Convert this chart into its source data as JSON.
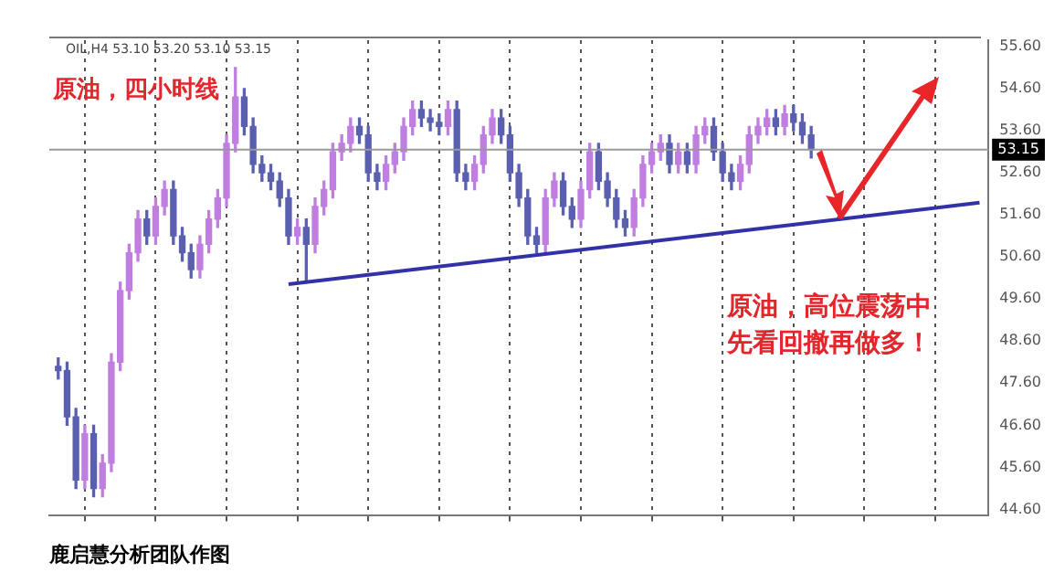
{
  "chart_data": {
    "type": "candlestick",
    "title": "原油，四小时线",
    "annotations": [
      "OIL,H4 53.10 53.20 53.10 53.15",
      "原油，高位震荡中先看回撤再做多！",
      "鹿启慧分析团队作图"
    ],
    "categories": [
      null,
      null,
      null,
      null,
      null,
      null,
      null,
      null,
      null,
      null,
      null,
      null,
      null,
      null,
      null,
      null,
      null,
      null,
      null,
      null,
      null,
      null,
      null,
      null,
      null,
      null,
      null,
      null,
      null,
      null,
      null,
      null,
      null,
      null,
      null,
      null,
      null,
      null,
      null,
      null,
      null,
      null,
      null,
      null,
      null,
      null,
      null,
      null,
      null,
      null,
      null,
      null,
      null,
      null,
      null,
      null,
      null,
      null,
      null,
      null,
      null,
      null,
      null,
      null,
      null,
      null,
      null,
      null,
      null,
      null,
      null,
      null,
      null,
      null,
      null,
      null,
      null,
      null,
      null,
      null,
      null,
      null,
      null,
      null,
      null,
      null,
      null,
      null,
      null,
      null,
      null,
      null,
      null,
      null,
      null,
      null,
      null,
      null,
      null,
      null,
      null,
      null,
      null,
      null,
      null
    ],
    "colors": [
      "#5b5fb0",
      "#5b5fb0",
      "#5b5fb0",
      "#c07ee0",
      "#5b5fb0",
      "#c07ee0",
      "#c07ee0",
      "#c07ee0",
      "#c07ee0",
      "#c07ee0",
      "#5b5fb0",
      "#c07ee0",
      "#c07ee0",
      "#5b5fb0",
      "#5b5fb0",
      "#5b5fb0",
      "#c07ee0",
      "#c07ee0",
      "#c07ee0",
      "#c07ee0",
      "#c07ee0",
      "#5b5fb0",
      "#5b5fb0",
      "#5b5fb0",
      "#5b5fb0",
      "#5b5fb0",
      "#5b5fb0",
      "#c07ee0",
      "#5b5fb0",
      "#c07ee0",
      "#c07ee0",
      "#c07ee0",
      "#c07ee0",
      "#c07ee0",
      "#5b5fb0",
      "#5b5fb0",
      "#5b5fb0",
      "#c07ee0",
      "#c07ee0",
      "#c07ee0",
      "#c07ee0",
      "#5b5fb0",
      "#5b5fb0",
      "#5b5fb0",
      "#c07ee0",
      "#5b5fb0",
      "#5b5fb0",
      "#c07ee0",
      "#c07ee0",
      "#c07ee0",
      "#5b5fb0",
      "#5b5fb0",
      "#5b5fb0",
      "#5b5fb0",
      "#5b5fb0",
      "#c07ee0",
      "#c07ee0",
      "#5b5fb0",
      "#5b5fb0",
      "#c07ee0",
      "#c07ee0",
      "#5b5fb0",
      "#5b5fb0",
      "#5b5fb0",
      "#5b5fb0",
      "#c07ee0",
      "#c07ee0",
      "#c07ee0",
      "#c07ee0",
      "#5b5fb0",
      "#c07ee0",
      "#5b5fb0",
      "#c07ee0",
      "#c07ee0",
      "#5b5fb0",
      "#5b5fb0",
      "#5b5fb0",
      "#c07ee0",
      "#c07ee0",
      "#c07ee0",
      "#c07ee0",
      "#5b5fb0",
      "#c07ee0",
      "#5b5fb0",
      "#5b5fb0",
      "#5b5fb0",
      null,
      null,
      null,
      null,
      null,
      null,
      null,
      null,
      null,
      null,
      null,
      null,
      null,
      null,
      null,
      null,
      null,
      null,
      null
    ],
    "ohlc": [
      [
        48.0,
        48.2,
        47.7,
        47.9
      ],
      [
        47.9,
        48.1,
        46.6,
        46.8
      ],
      [
        46.8,
        47.0,
        45.1,
        45.3
      ],
      [
        45.3,
        46.6,
        45.1,
        46.4
      ],
      [
        46.4,
        46.6,
        44.9,
        45.1
      ],
      [
        45.1,
        45.9,
        44.9,
        45.7
      ],
      [
        45.7,
        48.3,
        45.5,
        48.1
      ],
      [
        48.1,
        50.0,
        47.9,
        49.8
      ],
      [
        49.8,
        50.9,
        49.6,
        50.7
      ],
      [
        50.7,
        51.7,
        50.5,
        51.5
      ],
      [
        51.5,
        51.7,
        50.9,
        51.1
      ],
      [
        51.1,
        52.0,
        50.9,
        51.8
      ],
      [
        51.8,
        52.4,
        51.6,
        52.2
      ],
      [
        52.2,
        52.4,
        50.9,
        51.1
      ],
      [
        51.1,
        51.3,
        50.5,
        50.7
      ],
      [
        50.7,
        50.9,
        50.1,
        50.3
      ],
      [
        50.3,
        51.1,
        50.1,
        50.9
      ],
      [
        50.9,
        51.7,
        50.7,
        51.5
      ],
      [
        51.5,
        52.2,
        51.3,
        52.0
      ],
      [
        52.0,
        53.5,
        51.8,
        53.3
      ],
      [
        53.3,
        55.1,
        53.1,
        54.4
      ],
      [
        54.4,
        54.6,
        53.5,
        53.7
      ],
      [
        53.7,
        53.9,
        52.6,
        52.8
      ],
      [
        52.8,
        53.0,
        52.4,
        52.6
      ],
      [
        52.6,
        52.8,
        52.2,
        52.4
      ],
      [
        52.4,
        52.6,
        51.8,
        52.0
      ],
      [
        52.0,
        52.2,
        50.9,
        51.1
      ],
      [
        51.1,
        51.5,
        50.9,
        51.3
      ],
      [
        51.3,
        51.5,
        50.0,
        50.9
      ],
      [
        50.9,
        52.0,
        50.7,
        51.8
      ],
      [
        51.8,
        52.4,
        51.6,
        52.2
      ],
      [
        52.2,
        53.3,
        52.0,
        53.1
      ],
      [
        53.1,
        53.5,
        52.9,
        53.3
      ],
      [
        53.3,
        53.9,
        53.1,
        53.7
      ],
      [
        53.7,
        53.9,
        53.3,
        53.5
      ],
      [
        53.5,
        53.7,
        52.4,
        52.6
      ],
      [
        52.6,
        52.8,
        52.2,
        52.4
      ],
      [
        52.4,
        53.0,
        52.2,
        52.8
      ],
      [
        52.8,
        53.3,
        52.6,
        53.1
      ],
      [
        53.1,
        53.9,
        52.9,
        53.7
      ],
      [
        53.7,
        54.3,
        53.5,
        54.1
      ],
      [
        54.1,
        54.3,
        53.7,
        53.9
      ],
      [
        53.9,
        54.1,
        53.6,
        53.8
      ],
      [
        53.8,
        54.0,
        53.5,
        53.7
      ],
      [
        53.7,
        54.3,
        53.5,
        54.1
      ],
      [
        54.1,
        54.3,
        52.4,
        52.6
      ],
      [
        52.6,
        52.8,
        52.2,
        52.4
      ],
      [
        52.4,
        53.0,
        52.2,
        52.8
      ],
      [
        52.8,
        53.7,
        52.6,
        53.5
      ],
      [
        53.5,
        54.1,
        53.3,
        53.9
      ],
      [
        53.9,
        54.1,
        53.3,
        53.5
      ],
      [
        53.5,
        53.7,
        52.4,
        52.6
      ],
      [
        52.6,
        52.8,
        51.8,
        52.0
      ],
      [
        52.0,
        52.2,
        50.9,
        51.1
      ],
      [
        51.1,
        51.3,
        50.7,
        50.9
      ],
      [
        50.9,
        52.2,
        50.7,
        52.0
      ],
      [
        52.0,
        52.6,
        51.8,
        52.4
      ],
      [
        52.4,
        52.6,
        51.6,
        51.8
      ],
      [
        51.8,
        52.0,
        51.3,
        51.5
      ],
      [
        51.5,
        52.4,
        51.3,
        52.2
      ],
      [
        52.2,
        53.3,
        52.0,
        53.1
      ],
      [
        53.1,
        53.3,
        52.2,
        52.4
      ],
      [
        52.4,
        52.6,
        51.8,
        52.0
      ],
      [
        52.0,
        52.2,
        51.3,
        51.5
      ],
      [
        51.5,
        51.7,
        51.1,
        51.3
      ],
      [
        51.3,
        52.2,
        51.1,
        52.0
      ],
      [
        52.0,
        53.0,
        51.8,
        52.8
      ],
      [
        52.8,
        53.3,
        52.6,
        53.1
      ],
      [
        53.1,
        53.5,
        52.9,
        53.3
      ],
      [
        53.3,
        53.5,
        52.6,
        52.8
      ],
      [
        52.8,
        53.3,
        52.6,
        53.1
      ],
      [
        53.1,
        53.3,
        52.6,
        52.8
      ],
      [
        52.8,
        53.7,
        52.6,
        53.5
      ],
      [
        53.5,
        53.9,
        53.3,
        53.7
      ],
      [
        53.7,
        53.9,
        52.9,
        53.1
      ],
      [
        53.1,
        53.3,
        52.4,
        52.6
      ],
      [
        52.6,
        52.8,
        52.2,
        52.4
      ],
      [
        52.4,
        53.0,
        52.2,
        52.8
      ],
      [
        52.8,
        53.7,
        52.6,
        53.5
      ],
      [
        53.5,
        53.9,
        53.3,
        53.7
      ],
      [
        53.7,
        54.1,
        53.5,
        53.9
      ],
      [
        53.9,
        54.1,
        53.5,
        53.7
      ],
      [
        53.7,
        54.2,
        53.5,
        54.0
      ],
      [
        54.0,
        54.2,
        53.6,
        53.8
      ],
      [
        53.8,
        54.0,
        53.3,
        53.5
      ],
      [
        53.5,
        53.7,
        52.95,
        53.15
      ],
      null,
      null,
      null,
      null,
      null,
      null,
      null,
      null,
      null,
      null,
      null,
      null,
      null,
      null,
      null,
      null,
      null,
      null,
      null
    ],
    "series": [
      {
        "type": "line",
        "values": [
          null,
          null,
          null,
          null,
          null,
          null,
          null,
          null,
          null,
          null,
          null,
          null,
          null,
          null,
          null,
          null,
          null,
          null,
          null,
          null,
          null,
          null,
          null,
          null,
          null,
          null,
          49.95,
          null,
          null,
          null,
          null,
          null,
          null,
          null,
          null,
          null,
          null,
          null,
          null,
          null,
          null,
          null,
          null,
          null,
          null,
          null,
          null,
          null,
          null,
          null,
          null,
          null,
          null,
          null,
          null,
          null,
          null,
          null,
          null,
          null,
          null,
          null,
          null,
          null,
          null,
          null,
          null,
          null,
          null,
          null,
          null,
          null,
          null,
          null,
          null,
          null,
          null,
          null,
          null,
          null,
          null,
          null,
          null,
          null,
          null,
          null,
          null,
          null,
          null,
          null,
          null,
          null,
          null,
          null,
          null,
          null,
          null,
          null,
          null,
          null,
          null,
          null,
          null,
          null,
          51.89
        ],
        "color": "#3232a8"
      }
    ],
    "ylim": [
      44.45,
      55.75
    ],
    "yticks": [
      {
        "value": 44.6,
        "label": "44.60"
      },
      {
        "value": 45.6,
        "label": "45.60"
      },
      {
        "value": 46.6,
        "label": "46.60"
      },
      {
        "value": 47.6,
        "label": "47.60"
      },
      {
        "value": 48.6,
        "label": "48.60"
      },
      {
        "value": 49.6,
        "label": "49.60"
      },
      {
        "value": 50.6,
        "label": "50.60"
      },
      {
        "value": 51.6,
        "label": "51.60"
      },
      {
        "value": 52.6,
        "label": "52.60"
      },
      {
        "value": 53.6,
        "label": "53.60"
      },
      {
        "value": 54.6,
        "label": "54.60"
      },
      {
        "value": 55.6,
        "label": "55.60"
      }
    ],
    "ref_lines": [
      {
        "axis": "y",
        "value": 53.15,
        "label": "53.15",
        "color": "#999999"
      }
    ],
    "grid": "x",
    "legend": false,
    "tick_labels": "y"
  }
}
